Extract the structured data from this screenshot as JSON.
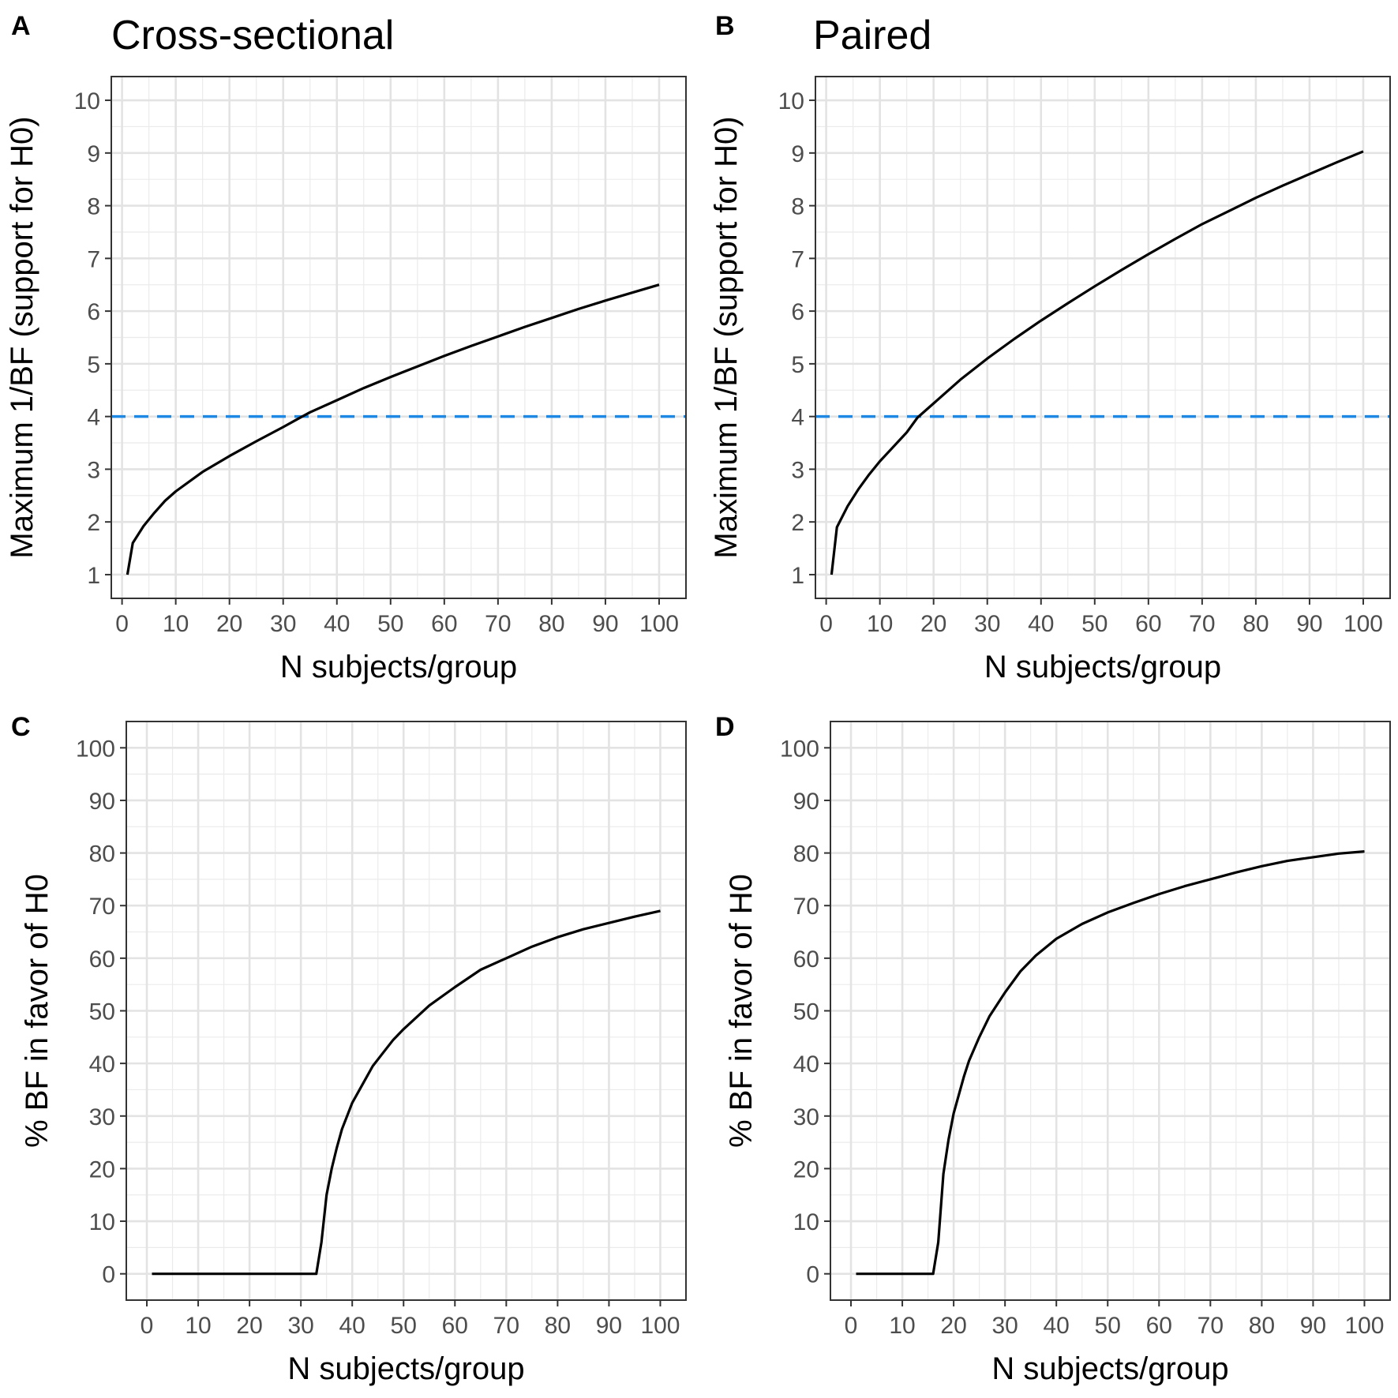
{
  "chart_data": [
    {
      "panel": "A",
      "type": "line",
      "title": "Cross-sectional",
      "xlabel": "N subjects/group",
      "ylabel": "Maximum 1/BF (support for H0)",
      "xlim": [
        -2,
        105
      ],
      "ylim": [
        0.55,
        10.45
      ],
      "xticks": [
        0,
        10,
        20,
        30,
        40,
        50,
        60,
        70,
        80,
        90,
        100
      ],
      "yticks": [
        1,
        2,
        3,
        4,
        5,
        6,
        7,
        8,
        9,
        10
      ],
      "grid": true,
      "reference_line": {
        "y": 4,
        "color": "#1E88E5",
        "style": "dashed"
      },
      "series": [
        {
          "x": [
            1,
            2,
            4,
            6,
            8,
            10,
            15,
            20,
            25,
            30,
            33,
            35,
            40,
            45,
            50,
            55,
            60,
            65,
            70,
            75,
            80,
            85,
            90,
            95,
            100
          ],
          "y": [
            1.0,
            1.6,
            1.92,
            2.17,
            2.4,
            2.58,
            2.95,
            3.25,
            3.53,
            3.8,
            3.97,
            4.08,
            4.31,
            4.54,
            4.75,
            4.95,
            5.15,
            5.34,
            5.52,
            5.7,
            5.87,
            6.04,
            6.2,
            6.35,
            6.5
          ]
        }
      ]
    },
    {
      "panel": "B",
      "type": "line",
      "title": "Paired",
      "xlabel": "N subjects/group",
      "ylabel": "Maximum 1/BF (support for H0)",
      "xlim": [
        -2,
        105
      ],
      "ylim": [
        0.55,
        10.45
      ],
      "xticks": [
        0,
        10,
        20,
        30,
        40,
        50,
        60,
        70,
        80,
        90,
        100
      ],
      "yticks": [
        1,
        2,
        3,
        4,
        5,
        6,
        7,
        8,
        9,
        10
      ],
      "grid": true,
      "reference_line": {
        "y": 4,
        "color": "#1E88E5",
        "style": "dashed"
      },
      "series": [
        {
          "x": [
            1,
            2,
            4,
            6,
            8,
            10,
            12,
            15,
            17,
            20,
            25,
            30,
            35,
            40,
            45,
            50,
            55,
            60,
            65,
            70,
            75,
            80,
            85,
            90,
            95,
            100
          ],
          "y": [
            1.0,
            1.9,
            2.3,
            2.62,
            2.9,
            3.15,
            3.37,
            3.7,
            3.98,
            4.25,
            4.7,
            5.1,
            5.47,
            5.82,
            6.15,
            6.47,
            6.78,
            7.08,
            7.37,
            7.65,
            7.9,
            8.15,
            8.38,
            8.6,
            8.82,
            9.03
          ]
        }
      ]
    },
    {
      "panel": "C",
      "type": "line",
      "title": "",
      "xlabel": "N subjects/group",
      "ylabel": "% BF in favor of H0",
      "xlim": [
        -4,
        105
      ],
      "ylim": [
        -5,
        105
      ],
      "xticks": [
        0,
        10,
        20,
        30,
        40,
        50,
        60,
        70,
        80,
        90,
        100
      ],
      "yticks": [
        0,
        10,
        20,
        30,
        40,
        50,
        60,
        70,
        80,
        90,
        100
      ],
      "grid": true,
      "series": [
        {
          "x": [
            1,
            10,
            20,
            30,
            33,
            34,
            35,
            36,
            37,
            38,
            39,
            40,
            42,
            44,
            46,
            48,
            50,
            55,
            60,
            65,
            70,
            75,
            80,
            85,
            90,
            95,
            100
          ],
          "y": [
            0,
            0,
            0,
            0,
            0,
            6,
            15,
            20,
            24,
            27.5,
            30,
            32.5,
            36,
            39.5,
            42,
            44.5,
            46.5,
            51,
            54.5,
            57.8,
            60,
            62.2,
            64,
            65.5,
            66.7,
            67.9,
            69
          ]
        }
      ]
    },
    {
      "panel": "D",
      "type": "line",
      "title": "",
      "xlabel": "N subjects/group",
      "ylabel": "% BF in favor of H0",
      "xlim": [
        -4,
        105
      ],
      "ylim": [
        -5,
        105
      ],
      "xticks": [
        0,
        10,
        20,
        30,
        40,
        50,
        60,
        70,
        80,
        90,
        100
      ],
      "yticks": [
        0,
        10,
        20,
        30,
        40,
        50,
        60,
        70,
        80,
        90,
        100
      ],
      "grid": true,
      "series": [
        {
          "x": [
            1,
            5,
            10,
            15,
            16,
            17,
            18,
            19,
            20,
            21,
            22,
            23,
            25,
            27,
            30,
            33,
            36,
            40,
            45,
            50,
            55,
            60,
            65,
            70,
            75,
            80,
            85,
            90,
            95,
            100
          ],
          "y": [
            0,
            0,
            0,
            0,
            0,
            6,
            19,
            25.5,
            30.5,
            34,
            37.5,
            40.5,
            45,
            49,
            53.5,
            57.5,
            60.5,
            63.7,
            66.5,
            68.7,
            70.5,
            72.2,
            73.7,
            75,
            76.3,
            77.5,
            78.5,
            79.2,
            79.9,
            80.3
          ]
        }
      ]
    }
  ]
}
